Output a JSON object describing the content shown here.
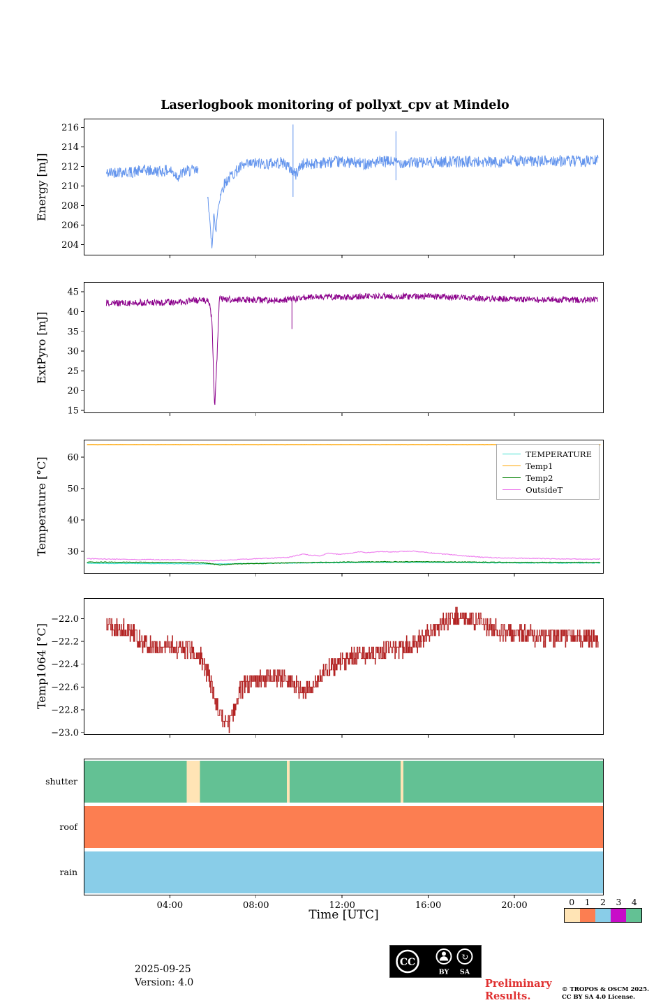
{
  "title": "Laserlogbook monitoring of pollyxt_cpv at Mindelo",
  "time_axis": {
    "label": "Time [UTC]",
    "domain": [
      0,
      24.15
    ],
    "ticks": [
      {
        "t": 4,
        "label": "04:00"
      },
      {
        "t": 8,
        "label": "08:00"
      },
      {
        "t": 12,
        "label": "12:00"
      },
      {
        "t": 16,
        "label": "16:00"
      },
      {
        "t": 20,
        "label": "20:00"
      }
    ]
  },
  "colorbar": {
    "labels": [
      "0",
      "1",
      "2",
      "3",
      "4"
    ],
    "colors": [
      "#ffe4b5",
      "#fc7e51",
      "#89cde8",
      "#c80cc8",
      "#63c194"
    ]
  },
  "chart_data": [
    {
      "type": "line",
      "ylabel": "Energy [mJ]",
      "ylim": [
        202.9,
        216.9
      ],
      "yticks": [
        {
          "v": 204,
          "label": "204"
        },
        {
          "v": 206,
          "label": "206"
        },
        {
          "v": 208,
          "label": "208"
        },
        {
          "v": 210,
          "label": "210"
        },
        {
          "v": 212,
          "label": "212"
        },
        {
          "v": 214,
          "label": "214"
        },
        {
          "v": 216,
          "label": "216"
        }
      ],
      "series": [
        {
          "name": "Energy",
          "color": "#6495ed",
          "noise": 0.6,
          "dt": 0.02,
          "width": 1,
          "anchors": [
            [
              1.05,
              211.3
            ],
            [
              1.6,
              211.5
            ],
            [
              2.2,
              211.4
            ],
            [
              2.8,
              211.6
            ],
            [
              3.4,
              211.5
            ],
            [
              4.0,
              211.6
            ],
            [
              4.4,
              211.0
            ],
            [
              4.7,
              211.5
            ],
            [
              5.0,
              211.6
            ],
            [
              5.3,
              211.5
            ],
            [
              5.78,
              209.0
            ],
            [
              5.88,
              205.2
            ],
            [
              5.96,
              203.9
            ],
            [
              6.04,
              207.6
            ],
            [
              6.12,
              204.9
            ],
            [
              6.22,
              207.5
            ],
            [
              6.35,
              209.2
            ],
            [
              6.55,
              210.3
            ],
            [
              6.9,
              211.2
            ],
            [
              7.3,
              211.9
            ],
            [
              7.8,
              212.3
            ],
            [
              8.5,
              212.3
            ],
            [
              9.3,
              212.4
            ],
            [
              9.85,
              211.2
            ],
            [
              10.1,
              212.2
            ],
            [
              11,
              212.4
            ],
            [
              12,
              212.5
            ],
            [
              13,
              212.3
            ],
            [
              14,
              212.5
            ],
            [
              15,
              212.4
            ],
            [
              16,
              212.4
            ],
            [
              17,
              212.5
            ],
            [
              18,
              212.5
            ],
            [
              19,
              212.4
            ],
            [
              20,
              212.6
            ],
            [
              21,
              212.5
            ],
            [
              22,
              212.6
            ],
            [
              23,
              212.5
            ],
            [
              23.9,
              212.6
            ]
          ],
          "gaps": [
            [
              5.32,
              5.74
            ]
          ],
          "vlines": [
            [
              9.72,
              208.9,
              216.3
            ],
            [
              14.5,
              210.6,
              215.6
            ]
          ]
        }
      ]
    },
    {
      "type": "line",
      "ylabel": "ExtPyro [mJ]",
      "ylim": [
        14.3,
        47.5
      ],
      "yticks": [
        {
          "v": 15,
          "label": "15"
        },
        {
          "v": 20,
          "label": "20"
        },
        {
          "v": 25,
          "label": "25"
        },
        {
          "v": 30,
          "label": "30"
        },
        {
          "v": 35,
          "label": "35"
        },
        {
          "v": 40,
          "label": "40"
        },
        {
          "v": 45,
          "label": "45"
        }
      ],
      "series": [
        {
          "name": "ExtPyro",
          "color": "#8b008b",
          "noise": 0.8,
          "dt": 0.02,
          "width": 1,
          "anchors": [
            [
              1.05,
              42.2
            ],
            [
              1.8,
              42.1
            ],
            [
              2.5,
              42.3
            ],
            [
              3.2,
              42.2
            ],
            [
              3.9,
              42.4
            ],
            [
              4.5,
              42.3
            ],
            [
              5.0,
              42.8
            ],
            [
              5.5,
              42.9
            ],
            [
              5.82,
              42.6
            ],
            [
              5.95,
              38.0
            ],
            [
              6.08,
              15.4
            ],
            [
              6.2,
              30.0
            ],
            [
              6.3,
              43.2
            ],
            [
              6.8,
              43.1
            ],
            [
              7.5,
              43.0
            ],
            [
              8.2,
              42.9
            ],
            [
              9.0,
              42.8
            ],
            [
              9.6,
              43.0
            ],
            [
              10.2,
              43.6
            ],
            [
              11,
              43.8
            ],
            [
              12,
              43.6
            ],
            [
              13,
              43.8
            ],
            [
              14,
              43.9
            ],
            [
              15,
              43.8
            ],
            [
              16,
              43.9
            ],
            [
              17,
              43.6
            ],
            [
              18,
              43.5
            ],
            [
              19,
              43.3
            ],
            [
              20,
              43.1
            ],
            [
              21,
              43.0
            ],
            [
              22,
              43.1
            ],
            [
              23,
              42.9
            ],
            [
              23.9,
              43.0
            ]
          ],
          "vlines": [
            [
              9.67,
              35.6,
              43.4
            ]
          ]
        }
      ]
    },
    {
      "type": "line",
      "ylabel": "Temperature [°C]",
      "ylim": [
        22.9,
        65.6
      ],
      "legend_position": "upper right",
      "yticks": [
        {
          "v": 30,
          "label": "30"
        },
        {
          "v": 40,
          "label": "40"
        },
        {
          "v": 50,
          "label": "50"
        },
        {
          "v": 60,
          "label": "60"
        }
      ],
      "series": [
        {
          "name": "TEMPERATURE",
          "color": "#40e0d0",
          "noise": 0.08,
          "dt": 0.04,
          "width": 1.2,
          "anchors": [
            [
              0.15,
              26.2
            ],
            [
              4,
              26.1
            ],
            [
              6,
              26.0
            ],
            [
              8,
              26.2
            ],
            [
              10,
              26.3
            ],
            [
              12,
              26.4
            ],
            [
              14,
              26.5
            ],
            [
              16,
              26.5
            ],
            [
              18,
              26.4
            ],
            [
              20,
              26.3
            ],
            [
              22,
              26.3
            ],
            [
              24,
              26.3
            ]
          ]
        },
        {
          "name": "Temp1",
          "color": "#ffa500",
          "noise": 0.04,
          "dt": 0.05,
          "width": 1.5,
          "anchors": [
            [
              0.15,
              64.0
            ],
            [
              24,
              64.0
            ]
          ]
        },
        {
          "name": "Temp2",
          "color": "#008000",
          "noise": 0.1,
          "dt": 0.04,
          "width": 1.2,
          "anchors": [
            [
              0.15,
              26.6
            ],
            [
              3,
              26.5
            ],
            [
              5.5,
              26.4
            ],
            [
              6.3,
              25.7
            ],
            [
              7,
              26.0
            ],
            [
              8.5,
              26.2
            ],
            [
              10,
              26.4
            ],
            [
              12,
              26.6
            ],
            [
              14,
              26.7
            ],
            [
              16,
              26.7
            ],
            [
              18,
              26.6
            ],
            [
              20,
              26.5
            ],
            [
              22,
              26.5
            ],
            [
              24,
              26.5
            ]
          ]
        },
        {
          "name": "OutsideT",
          "color": "#ee82ee",
          "noise": 0.12,
          "dt": 0.04,
          "width": 1.2,
          "anchors": [
            [
              0.15,
              27.7
            ],
            [
              1.5,
              27.5
            ],
            [
              3,
              27.4
            ],
            [
              4.5,
              27.3
            ],
            [
              5.8,
              27.0
            ],
            [
              6.5,
              27.2
            ],
            [
              7.5,
              27.5
            ],
            [
              8.5,
              27.8
            ],
            [
              9.5,
              28.1
            ],
            [
              10.2,
              29.2
            ],
            [
              10.5,
              28.8
            ],
            [
              11,
              28.6
            ],
            [
              11.4,
              29.5
            ],
            [
              11.8,
              29.1
            ],
            [
              12.3,
              29.3
            ],
            [
              12.8,
              29.9
            ],
            [
              13.2,
              29.6
            ],
            [
              13.8,
              30.0
            ],
            [
              14.3,
              29.8
            ],
            [
              14.8,
              30.0
            ],
            [
              15.3,
              30.1
            ],
            [
              15.8,
              29.8
            ],
            [
              16.3,
              29.4
            ],
            [
              17,
              29.0
            ],
            [
              17.8,
              28.5
            ],
            [
              18.6,
              28.1
            ],
            [
              19.5,
              27.9
            ],
            [
              20.5,
              27.8
            ],
            [
              21.5,
              27.7
            ],
            [
              22.5,
              27.6
            ],
            [
              23.4,
              27.5
            ],
            [
              24,
              27.6
            ]
          ]
        }
      ]
    },
    {
      "type": "line",
      "ylabel": "Temp1064 [°C]",
      "ylim": [
        -23.02,
        -21.82
      ],
      "yticks": [
        {
          "v": -23.0,
          "label": "−23.0"
        },
        {
          "v": -22.8,
          "label": "−22.8"
        },
        {
          "v": -22.6,
          "label": "−22.6"
        },
        {
          "v": -22.4,
          "label": "−22.4"
        },
        {
          "v": -22.2,
          "label": "−22.2"
        },
        {
          "v": -22.0,
          "label": "−22.0"
        }
      ],
      "series": [
        {
          "name": "Temp1064",
          "color": "#b22222",
          "noise": 0.08,
          "dt": 0.02,
          "quantize": 0.05,
          "step": true,
          "width": 1,
          "anchors": [
            [
              1.05,
              -22.05
            ],
            [
              1.5,
              -22.08
            ],
            [
              2.0,
              -22.1
            ],
            [
              2.4,
              -22.15
            ],
            [
              2.8,
              -22.22
            ],
            [
              3.2,
              -22.25
            ],
            [
              3.8,
              -22.25
            ],
            [
              4.4,
              -22.25
            ],
            [
              5.0,
              -22.27
            ],
            [
              5.4,
              -22.33
            ],
            [
              5.8,
              -22.5
            ],
            [
              6.1,
              -22.72
            ],
            [
              6.35,
              -22.85
            ],
            [
              6.6,
              -22.92
            ],
            [
              6.85,
              -22.9
            ],
            [
              7.0,
              -22.78
            ],
            [
              7.2,
              -22.65
            ],
            [
              7.5,
              -22.58
            ],
            [
              8.0,
              -22.55
            ],
            [
              8.5,
              -22.52
            ],
            [
              9.0,
              -22.5
            ],
            [
              9.5,
              -22.52
            ],
            [
              9.9,
              -22.6
            ],
            [
              10.3,
              -22.63
            ],
            [
              10.7,
              -22.58
            ],
            [
              11.0,
              -22.5
            ],
            [
              11.4,
              -22.45
            ],
            [
              11.8,
              -22.4
            ],
            [
              12.2,
              -22.36
            ],
            [
              12.7,
              -22.32
            ],
            [
              13.2,
              -22.3
            ],
            [
              13.7,
              -22.3
            ],
            [
              14.2,
              -22.27
            ],
            [
              14.7,
              -22.26
            ],
            [
              15.2,
              -22.23
            ],
            [
              15.7,
              -22.18
            ],
            [
              16.1,
              -22.12
            ],
            [
              16.5,
              -22.06
            ],
            [
              17.0,
              -22.0
            ],
            [
              17.5,
              -21.99
            ],
            [
              18.0,
              -22.0
            ],
            [
              18.4,
              -22.03
            ],
            [
              18.8,
              -22.07
            ],
            [
              19.2,
              -22.1
            ],
            [
              19.7,
              -22.12
            ],
            [
              20.2,
              -22.14
            ],
            [
              20.8,
              -22.15
            ],
            [
              21.4,
              -22.18
            ],
            [
              22.0,
              -22.16
            ],
            [
              22.6,
              -22.16
            ],
            [
              23.2,
              -22.18
            ],
            [
              23.9,
              -22.16
            ]
          ]
        }
      ]
    },
    {
      "type": "bands",
      "ylabel": "",
      "show_x_labels": true,
      "rows": [
        {
          "label": "shutter",
          "segments": [
            {
              "from": 0,
              "to": 4.78,
              "value": 4
            },
            {
              "from": 4.78,
              "to": 5.4,
              "value": 0
            },
            {
              "from": 5.4,
              "to": 9.43,
              "value": 4
            },
            {
              "from": 9.43,
              "to": 9.56,
              "value": 0
            },
            {
              "from": 9.56,
              "to": 14.72,
              "value": 4
            },
            {
              "from": 14.72,
              "to": 14.84,
              "value": 0
            },
            {
              "from": 14.84,
              "to": 24.15,
              "value": 4
            }
          ]
        },
        {
          "label": "roof",
          "segments": [
            {
              "from": 0,
              "to": 24.15,
              "value": 1
            }
          ]
        },
        {
          "label": "rain",
          "segments": [
            {
              "from": 0,
              "to": 24.15,
              "value": 2
            }
          ]
        }
      ]
    }
  ],
  "footer": {
    "date": "2025-09-25",
    "version": "Version: 4.0",
    "preliminary_line1": "Preliminary",
    "preliminary_line2": "Results.",
    "preliminary_color": "#e03030",
    "copyright1": "© TROPOS & OSCM 2025.",
    "copyright2": "CC BY SA 4.0 License.",
    "cc_logo": "CC",
    "cc_by": "BY",
    "cc_sa": "SA"
  }
}
